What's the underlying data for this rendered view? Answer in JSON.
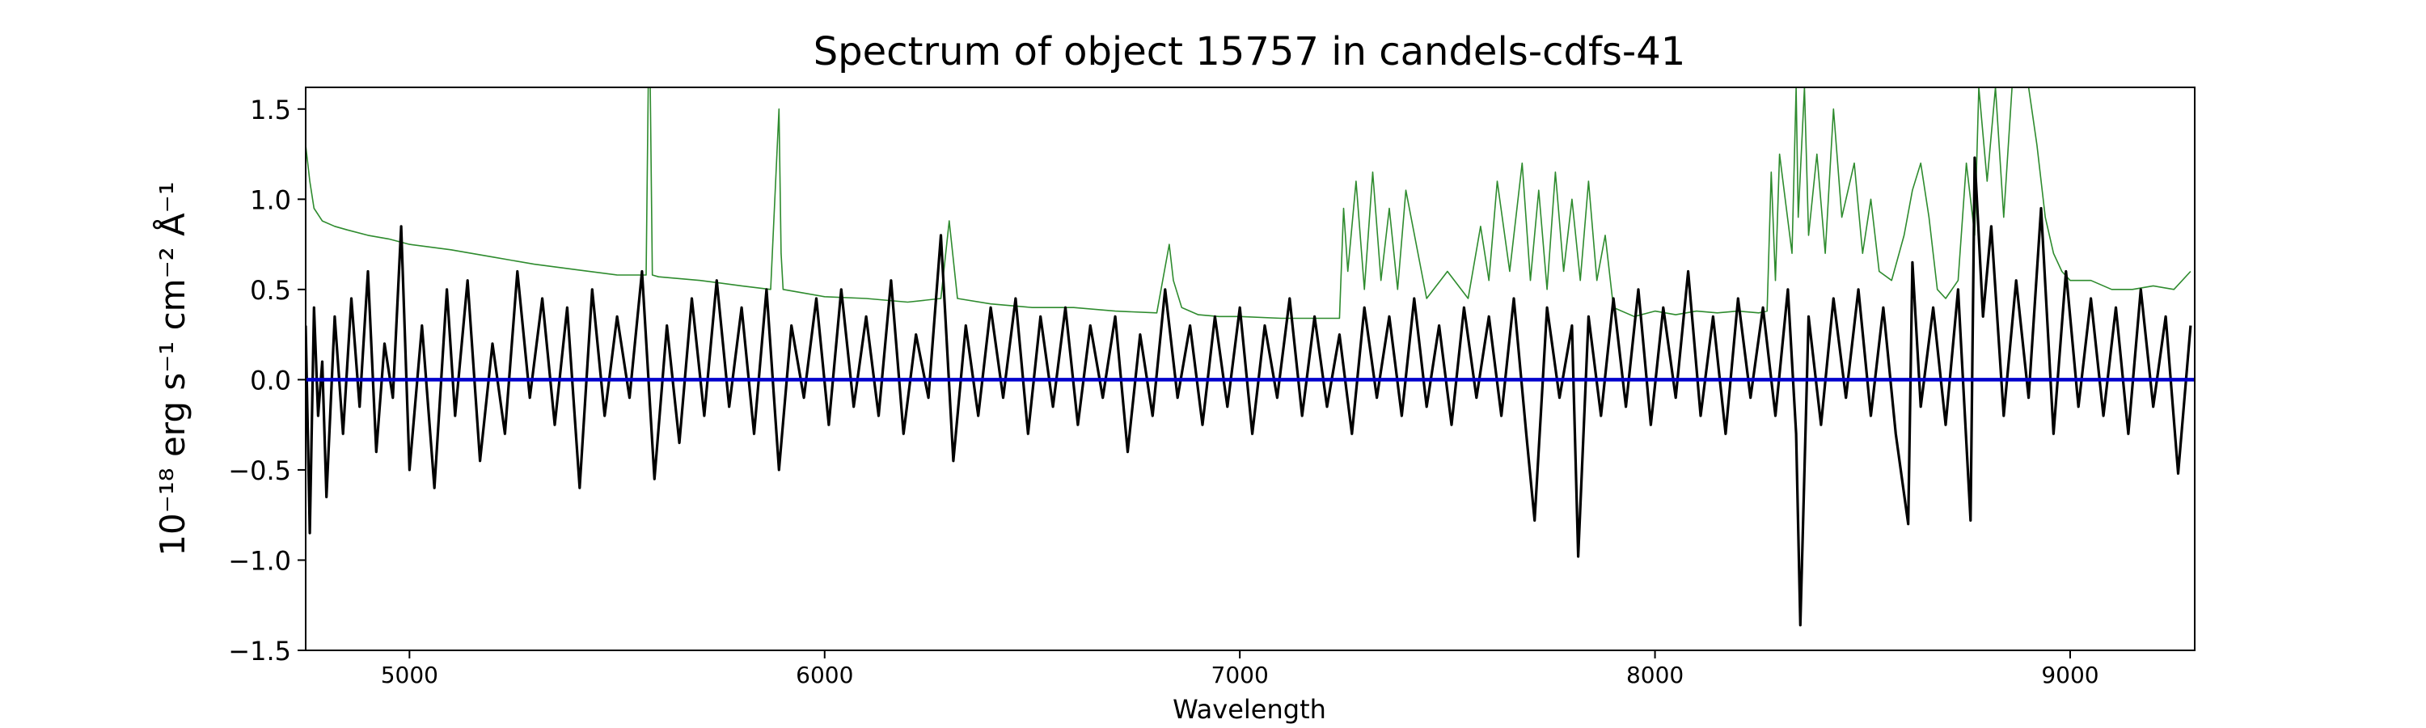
{
  "chart_data": {
    "type": "line",
    "title": "Spectrum of object 15757 in candels-cdfs-41",
    "xlabel": "Wavelength",
    "ylabel": "10⁻¹⁸ erg s⁻¹ cm⁻² Å⁻¹",
    "xlim": [
      4750,
      9300
    ],
    "ylim": [
      -1.5,
      1.62
    ],
    "x_ticks": [
      5000,
      6000,
      7000,
      8000,
      9000
    ],
    "y_ticks": [
      -1.5,
      -1.0,
      -0.5,
      0.0,
      0.5,
      1.0,
      1.5
    ],
    "x_tick_labels": [
      "5000",
      "6000",
      "7000",
      "8000",
      "9000"
    ],
    "y_tick_labels": [
      "−1.5",
      "−1.0",
      "−0.5",
      "0.0",
      "0.5",
      "1.0",
      "1.5"
    ],
    "grid": false,
    "colors": {
      "flux": "#000000",
      "error": "#2e8b2e",
      "model": "#0000cc"
    },
    "series": [
      {
        "role": "flux",
        "x": [
          4750,
          4760,
          4770,
          4780,
          4790,
          4800,
          4820,
          4840,
          4860,
          4880,
          4900,
          4920,
          4940,
          4960,
          4980,
          5000,
          5030,
          5060,
          5090,
          5110,
          5140,
          5170,
          5200,
          5230,
          5260,
          5290,
          5320,
          5350,
          5380,
          5410,
          5440,
          5470,
          5500,
          5530,
          5560,
          5590,
          5620,
          5650,
          5680,
          5710,
          5740,
          5770,
          5800,
          5830,
          5860,
          5890,
          5920,
          5950,
          5980,
          6010,
          6040,
          6070,
          6100,
          6130,
          6160,
          6190,
          6220,
          6250,
          6280,
          6310,
          6340,
          6370,
          6400,
          6430,
          6460,
          6490,
          6520,
          6550,
          6580,
          6610,
          6640,
          6670,
          6700,
          6730,
          6760,
          6790,
          6820,
          6850,
          6880,
          6910,
          6940,
          6970,
          7000,
          7030,
          7060,
          7090,
          7120,
          7150,
          7180,
          7210,
          7240,
          7270,
          7300,
          7330,
          7360,
          7390,
          7420,
          7450,
          7480,
          7510,
          7540,
          7570,
          7600,
          7630,
          7660,
          7690,
          7710,
          7740,
          7770,
          7800,
          7815,
          7840,
          7870,
          7900,
          7930,
          7960,
          7990,
          8020,
          8050,
          8080,
          8110,
          8140,
          8170,
          8200,
          8230,
          8260,
          8290,
          8320,
          8340,
          8350,
          8370,
          8400,
          8430,
          8460,
          8490,
          8520,
          8550,
          8580,
          8610,
          8620,
          8640,
          8670,
          8700,
          8730,
          8760,
          8770,
          8790,
          8810,
          8840,
          8870,
          8900,
          8930,
          8960,
          8990,
          9020,
          9050,
          9080,
          9110,
          9140,
          9170,
          9200,
          9230,
          9260,
          9290
        ],
        "y": [
          0.3,
          -0.85,
          0.4,
          -0.2,
          0.1,
          -0.65,
          0.35,
          -0.3,
          0.45,
          -0.15,
          0.6,
          -0.4,
          0.2,
          -0.1,
          0.85,
          -0.5,
          0.3,
          -0.6,
          0.5,
          -0.2,
          0.55,
          -0.45,
          0.2,
          -0.3,
          0.6,
          -0.1,
          0.45,
          -0.25,
          0.4,
          -0.6,
          0.5,
          -0.2,
          0.35,
          -0.1,
          0.6,
          -0.55,
          0.3,
          -0.35,
          0.45,
          -0.2,
          0.55,
          -0.15,
          0.4,
          -0.3,
          0.5,
          -0.5,
          0.3,
          -0.1,
          0.45,
          -0.25,
          0.5,
          -0.15,
          0.35,
          -0.2,
          0.55,
          -0.3,
          0.25,
          -0.1,
          0.8,
          -0.45,
          0.3,
          -0.2,
          0.4,
          -0.1,
          0.45,
          -0.3,
          0.35,
          -0.15,
          0.4,
          -0.25,
          0.3,
          -0.1,
          0.35,
          -0.4,
          0.25,
          -0.2,
          0.5,
          -0.1,
          0.3,
          -0.25,
          0.35,
          -0.15,
          0.4,
          -0.3,
          0.3,
          -0.1,
          0.45,
          -0.2,
          0.35,
          -0.15,
          0.25,
          -0.3,
          0.4,
          -0.1,
          0.35,
          -0.2,
          0.45,
          -0.15,
          0.3,
          -0.25,
          0.4,
          -0.1,
          0.35,
          -0.2,
          0.45,
          -0.3,
          -0.78,
          0.4,
          -0.1,
          0.3,
          -0.98,
          0.35,
          -0.2,
          0.45,
          -0.15,
          0.5,
          -0.25,
          0.4,
          -0.1,
          0.6,
          -0.2,
          0.35,
          -0.3,
          0.45,
          -0.1,
          0.4,
          -0.2,
          0.5,
          -0.3,
          -1.36,
          0.35,
          -0.25,
          0.45,
          -0.1,
          0.5,
          -0.2,
          0.4,
          -0.3,
          -0.8,
          0.65,
          -0.15,
          0.4,
          -0.25,
          0.5,
          -0.78,
          1.23,
          0.35,
          0.85,
          -0.2,
          0.55,
          -0.1,
          0.95,
          -0.3,
          0.6,
          -0.15,
          0.45,
          -0.2,
          0.4,
          -0.3,
          0.5,
          -0.15,
          0.35,
          -0.52,
          0.3
        ]
      },
      {
        "role": "error",
        "x": [
          4750,
          4760,
          4770,
          4790,
          4820,
          4850,
          4900,
          4950,
          5000,
          5100,
          5200,
          5300,
          5400,
          5500,
          5570,
          5575,
          5580,
          5585,
          5600,
          5700,
          5800,
          5870,
          5890,
          5895,
          5900,
          5950,
          6000,
          6100,
          6200,
          6280,
          6300,
          6320,
          6400,
          6500,
          6600,
          6700,
          6800,
          6830,
          6840,
          6860,
          6900,
          6950,
          7000,
          7100,
          7200,
          7240,
          7250,
          7260,
          7280,
          7300,
          7320,
          7340,
          7360,
          7380,
          7400,
          7450,
          7500,
          7550,
          7580,
          7600,
          7620,
          7650,
          7680,
          7700,
          7720,
          7740,
          7760,
          7780,
          7800,
          7820,
          7840,
          7860,
          7880,
          7900,
          7950,
          8000,
          8050,
          8100,
          8150,
          8200,
          8250,
          8270,
          8280,
          8290,
          8300,
          8330,
          8340,
          8345,
          8360,
          8370,
          8390,
          8410,
          8430,
          8450,
          8480,
          8500,
          8520,
          8540,
          8570,
          8600,
          8620,
          8640,
          8660,
          8680,
          8700,
          8730,
          8750,
          8770,
          8780,
          8800,
          8820,
          8840,
          8860,
          8880,
          8900,
          8920,
          8940,
          8960,
          8980,
          9000,
          9050,
          9100,
          9150,
          9200,
          9250,
          9290
        ],
        "y": [
          1.3,
          1.1,
          0.95,
          0.88,
          0.85,
          0.83,
          0.8,
          0.78,
          0.75,
          0.72,
          0.68,
          0.64,
          0.61,
          0.58,
          0.58,
          1.62,
          1.62,
          0.58,
          0.57,
          0.55,
          0.52,
          0.5,
          1.5,
          0.7,
          0.5,
          0.48,
          0.46,
          0.45,
          0.43,
          0.45,
          0.88,
          0.45,
          0.42,
          0.4,
          0.4,
          0.38,
          0.37,
          0.75,
          0.55,
          0.4,
          0.36,
          0.35,
          0.35,
          0.34,
          0.34,
          0.34,
          0.95,
          0.6,
          1.1,
          0.5,
          1.15,
          0.55,
          0.95,
          0.5,
          1.05,
          0.45,
          0.6,
          0.45,
          0.85,
          0.55,
          1.1,
          0.6,
          1.2,
          0.55,
          1.05,
          0.5,
          1.15,
          0.6,
          1.0,
          0.55,
          1.1,
          0.55,
          0.8,
          0.4,
          0.35,
          0.38,
          0.36,
          0.38,
          0.37,
          0.38,
          0.37,
          0.38,
          1.15,
          0.55,
          1.25,
          0.7,
          1.62,
          0.9,
          1.62,
          0.8,
          1.25,
          0.7,
          1.5,
          0.9,
          1.2,
          0.7,
          1.0,
          0.6,
          0.55,
          0.8,
          1.05,
          1.2,
          0.9,
          0.5,
          0.45,
          0.55,
          1.2,
          0.8,
          1.62,
          1.1,
          1.62,
          0.9,
          1.62,
          1.62,
          1.62,
          1.3,
          0.9,
          0.7,
          0.6,
          0.55,
          0.55,
          0.5,
          0.5,
          0.52,
          0.5,
          0.6
        ]
      },
      {
        "role": "model",
        "x": [
          4750,
          9300
        ],
        "y": [
          0.0,
          0.0
        ]
      }
    ]
  }
}
